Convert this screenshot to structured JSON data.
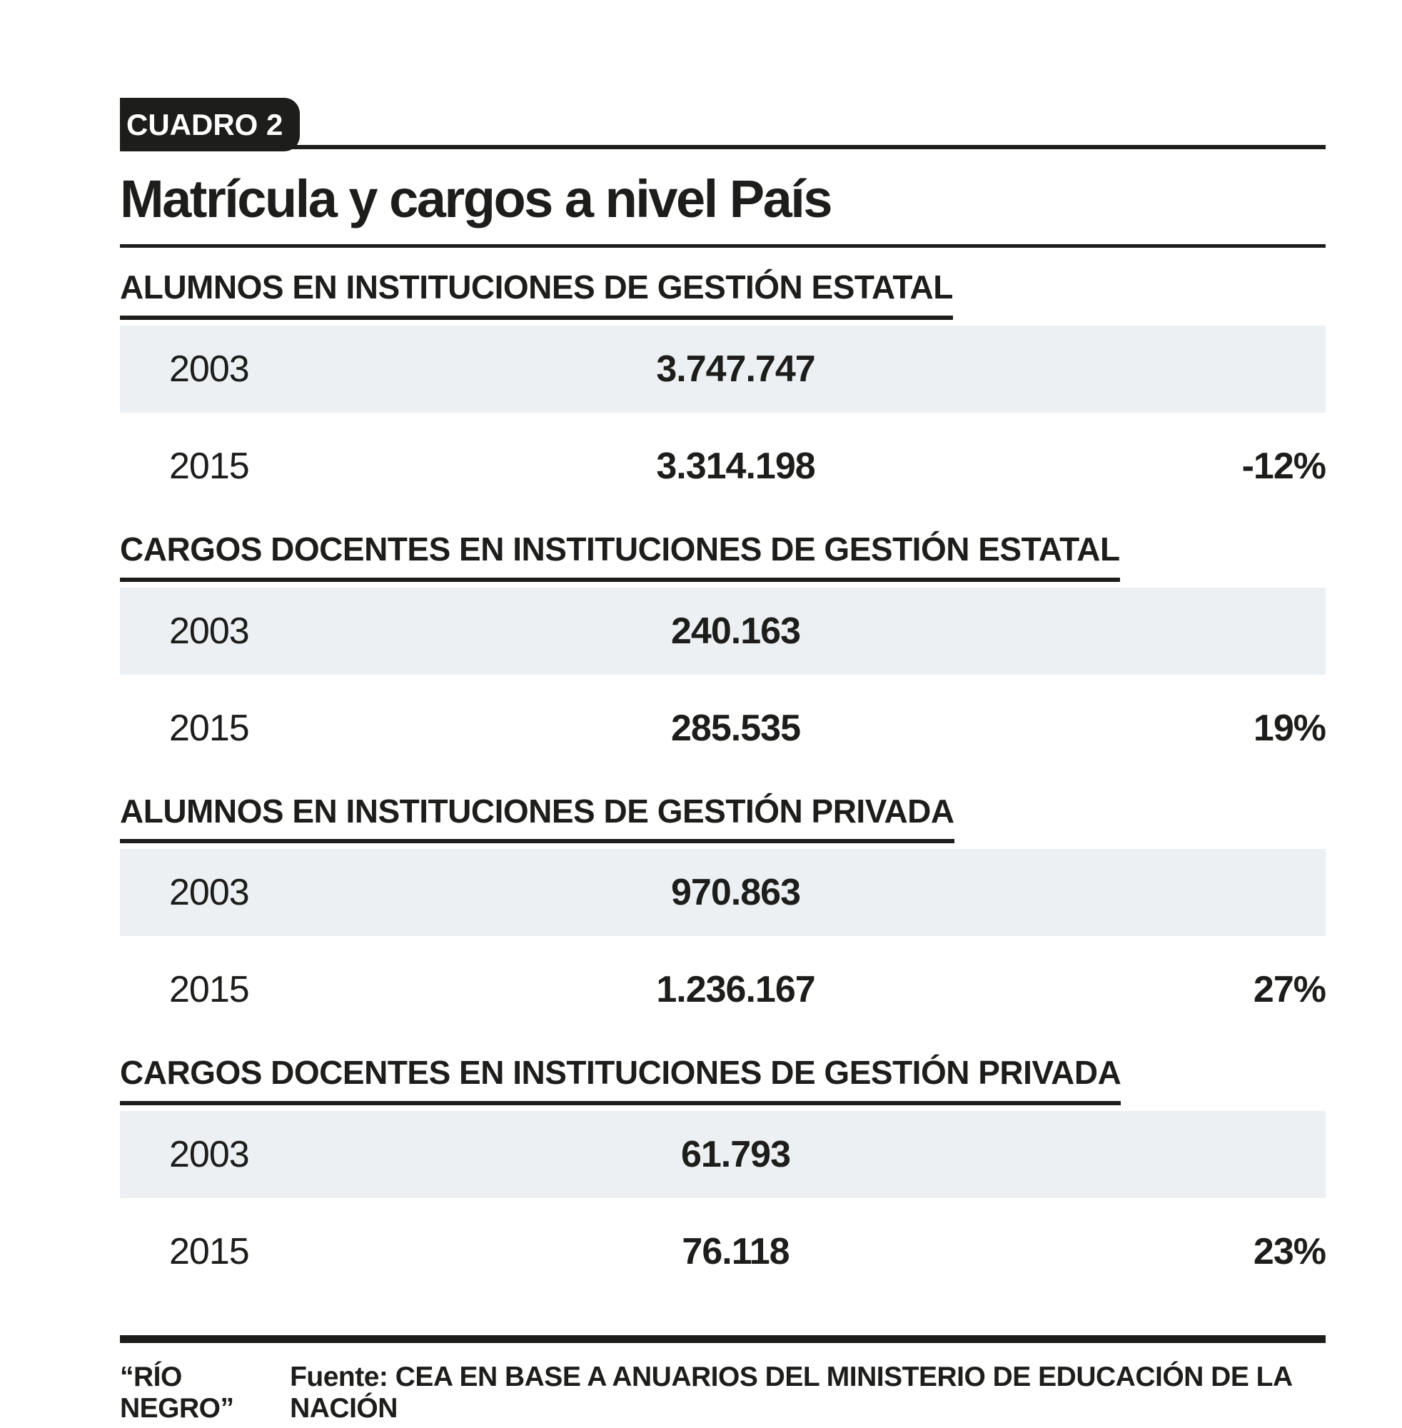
{
  "badge": {
    "label": "CUADRO 2"
  },
  "title": "Matrícula y cargos a nivel País",
  "colors": {
    "ink": "#1d1d1b",
    "row_shade": "#ecf0f2",
    "background": "#ffffff",
    "badge_text": "#ffffff"
  },
  "sections": [
    {
      "header": "ALUMNOS EN INSTITUCIONES DE GESTIÓN ESTATAL",
      "rows": [
        {
          "year": "2003",
          "value": "3.747.747",
          "change": ""
        },
        {
          "year": "2015",
          "value": "3.314.198",
          "change": "-12%"
        }
      ]
    },
    {
      "header": "CARGOS DOCENTES EN INSTITUCIONES DE GESTIÓN ESTATAL",
      "rows": [
        {
          "year": "2003",
          "value": "240.163",
          "change": ""
        },
        {
          "year": "2015",
          "value": "285.535",
          "change": "19%"
        }
      ]
    },
    {
      "header": "ALUMNOS EN INSTITUCIONES DE GESTIÓN PRIVADA",
      "rows": [
        {
          "year": "2003",
          "value": "970.863",
          "change": ""
        },
        {
          "year": "2015",
          "value": "1.236.167",
          "change": "27%"
        }
      ]
    },
    {
      "header": "CARGOS DOCENTES EN INSTITUCIONES DE GESTIÓN PRIVADA",
      "rows": [
        {
          "year": "2003",
          "value": "61.793",
          "change": ""
        },
        {
          "year": "2015",
          "value": "76.118",
          "change": "23%"
        }
      ]
    }
  ],
  "footer": {
    "brand": "“RÍO NEGRO”",
    "source": "Fuente: CEA EN BASE A ANUARIOS DEL MINISTERIO DE EDUCACIÓN DE LA NACIÓN"
  },
  "chart_data": {
    "type": "table",
    "title": "Matrícula y cargos a nivel País",
    "tag": "CUADRO 2",
    "sections": [
      {
        "label": "ALUMNOS EN INSTITUCIONES DE GESTIÓN ESTATAL",
        "rows": [
          {
            "year": 2003,
            "value": 3747747,
            "change_pct": null
          },
          {
            "year": 2015,
            "value": 3314198,
            "change_pct": -12
          }
        ]
      },
      {
        "label": "CARGOS DOCENTES EN INSTITUCIONES DE GESTIÓN ESTATAL",
        "rows": [
          {
            "year": 2003,
            "value": 240163,
            "change_pct": null
          },
          {
            "year": 2015,
            "value": 285535,
            "change_pct": 19
          }
        ]
      },
      {
        "label": "ALUMNOS EN INSTITUCIONES DE GESTIÓN PRIVADA",
        "rows": [
          {
            "year": 2003,
            "value": 970863,
            "change_pct": null
          },
          {
            "year": 2015,
            "value": 1236167,
            "change_pct": 27
          }
        ]
      },
      {
        "label": "CARGOS DOCENTES EN INSTITUCIONES DE GESTIÓN PRIVADA",
        "rows": [
          {
            "year": 2003,
            "value": 61793,
            "change_pct": null
          },
          {
            "year": 2015,
            "value": 76118,
            "change_pct": 23
          }
        ]
      }
    ],
    "credit": "RÍO NEGRO",
    "source": "CEA EN BASE A ANUARIOS DEL MINISTERIO DE EDUCACIÓN DE LA NACIÓN"
  }
}
